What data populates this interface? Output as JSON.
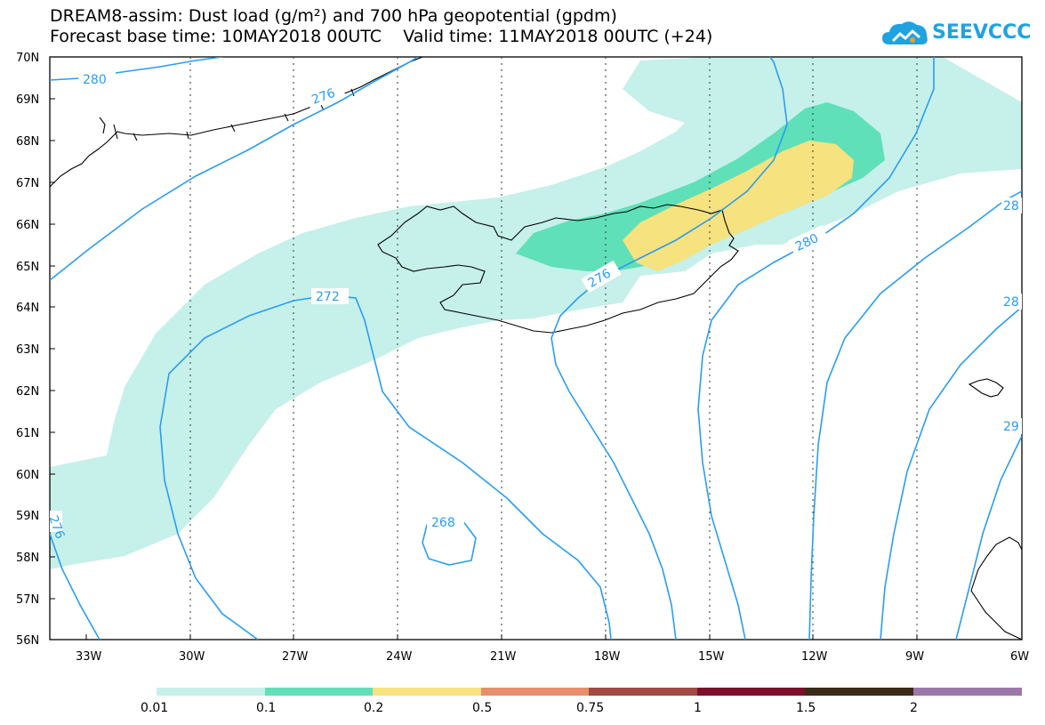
{
  "header": {
    "title_line1": "DREAM8-assim: Dust load (g/m²) and 700 hPa geopotential (gpdm)",
    "title_line2": "Forecast base time: 10MAY2018 00UTC    Valid time: 11MAY2018 00UTC (+24)",
    "logo_text": "SEEVCCC",
    "logo_icon": "cloud-logo-icon"
  },
  "map": {
    "lat_labels": [
      "70N",
      "69N",
      "68N",
      "67N",
      "66N",
      "65N",
      "64N",
      "63N",
      "62N",
      "61N",
      "60N",
      "59N",
      "58N",
      "57N",
      "56N"
    ],
    "lon_labels": [
      "33W",
      "30W",
      "27W",
      "24W",
      "21W",
      "18W",
      "15W",
      "12W",
      "9W",
      "6W"
    ],
    "contour_labels": [
      {
        "text": "280"
      },
      {
        "text": "276"
      },
      {
        "text": "272"
      },
      {
        "text": "268"
      },
      {
        "text": "276"
      },
      {
        "text": "280"
      },
      {
        "text": "276"
      },
      {
        "text": "28"
      },
      {
        "text": "28"
      },
      {
        "text": "29"
      }
    ],
    "colors": {
      "contour": "#2a9df0",
      "dust_001": "#c6f0ea",
      "dust_01": "#5fe0b8",
      "dust_02": "#f6e27e"
    }
  },
  "colorbar": {
    "labels": [
      "0.01",
      "0.1",
      "0.2",
      "0.5",
      "0.75",
      "1",
      "1.5",
      "2"
    ],
    "colors": [
      "#c6f0ea",
      "#5fe0b8",
      "#f6e27e",
      "#e88e6e",
      "#a34a44",
      "#7b0f2c",
      "#3b2a1a",
      "#9b78a9"
    ]
  }
}
